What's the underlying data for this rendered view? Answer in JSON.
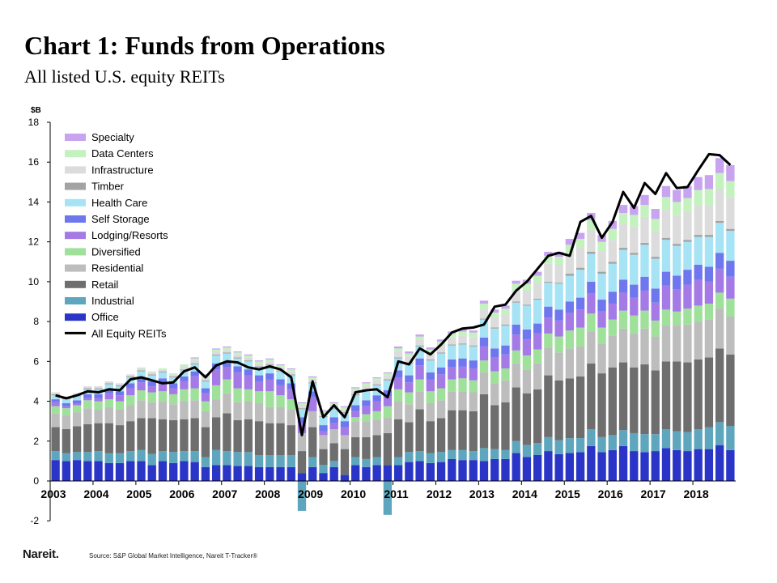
{
  "header": {
    "title": "Chart 1: Funds from Operations",
    "subtitle": "All listed U.S. equity REITs"
  },
  "footer": {
    "logo_text": "Nareit.",
    "source": "Source: S&P Global Market Intelligence, Nareit T-Tracker®"
  },
  "chart_data": {
    "type": "bar",
    "stacked": true,
    "ylabel": "$B",
    "ylim": [
      -2,
      18
    ],
    "yticks": [
      -2,
      0,
      2,
      4,
      6,
      8,
      10,
      12,
      14,
      16,
      18
    ],
    "year_labels": [
      "2003",
      "2004",
      "2005",
      "2006",
      "2007",
      "2008",
      "2009",
      "2010",
      "2011",
      "2012",
      "2013",
      "2014",
      "2015",
      "2016",
      "2017",
      "2018"
    ],
    "quarters_per_year": 4,
    "grid": false,
    "legend_position": "top-left",
    "colors": {
      "Office": "#2a35c8",
      "Industrial": "#5ea6bd",
      "Retail": "#6e6e6e",
      "Residential": "#bdbdbd",
      "Diversified": "#9fe09a",
      "Lodging/Resorts": "#a47ae6",
      "Self Storage": "#6f77ee",
      "Health Care": "#a5e3f5",
      "Timber": "#a3a3a3",
      "Infrastructure": "#dcdcdc",
      "Data Centers": "#c3f2bf",
      "Specialty": "#c8a3ef",
      "All Equity REITs": "#000000"
    },
    "series": [
      {
        "name": "Office",
        "values": [
          1.05,
          1.0,
          1.05,
          1.0,
          1.0,
          0.9,
          0.9,
          1.0,
          1.0,
          0.8,
          1.0,
          0.9,
          1.0,
          0.95,
          0.7,
          0.8,
          0.8,
          0.75,
          0.75,
          0.7,
          0.7,
          0.7,
          0.7,
          0.4,
          0.7,
          0.4,
          0.7,
          0.3,
          0.8,
          0.7,
          0.8,
          0.8,
          0.8,
          0.95,
          1.0,
          0.9,
          0.95,
          1.1,
          1.05,
          1.05,
          1.0,
          1.1,
          1.1,
          1.4,
          1.2,
          1.3,
          1.5,
          1.35,
          1.4,
          1.45,
          1.75,
          1.45,
          1.55,
          1.75,
          1.5,
          1.45,
          1.5,
          1.65,
          1.55,
          1.5,
          1.6,
          1.6,
          1.8,
          1.55
        ]
      },
      {
        "name": "Industrial",
        "values": [
          0.45,
          0.4,
          0.4,
          0.45,
          0.5,
          0.5,
          0.5,
          0.5,
          0.55,
          0.55,
          0.5,
          0.55,
          0.5,
          0.55,
          0.5,
          0.75,
          0.7,
          0.7,
          0.7,
          0.6,
          0.6,
          0.6,
          0.6,
          -1.5,
          0.5,
          0.4,
          0.3,
          -0.05,
          0.4,
          0.4,
          0.4,
          -1.7,
          0.4,
          0.5,
          0.5,
          0.5,
          0.5,
          0.45,
          0.5,
          0.45,
          0.65,
          0.5,
          0.45,
          0.6,
          0.6,
          0.6,
          0.7,
          0.7,
          0.75,
          0.7,
          0.85,
          0.75,
          0.75,
          0.8,
          0.9,
          0.9,
          0.85,
          0.95,
          0.95,
          0.95,
          1.0,
          1.1,
          1.15,
          1.2
        ]
      },
      {
        "name": "Retail",
        "values": [
          1.2,
          1.2,
          1.3,
          1.4,
          1.4,
          1.5,
          1.4,
          1.5,
          1.6,
          1.8,
          1.6,
          1.6,
          1.6,
          1.65,
          1.5,
          1.65,
          1.9,
          1.6,
          1.65,
          1.7,
          1.6,
          1.6,
          1.5,
          1.1,
          1.5,
          0.8,
          0.9,
          1.3,
          1.0,
          1.1,
          1.1,
          1.6,
          1.9,
          1.5,
          2.1,
          1.6,
          1.7,
          2.0,
          2.0,
          2.0,
          2.7,
          2.2,
          2.4,
          2.7,
          2.6,
          2.7,
          3.1,
          3.0,
          3.0,
          3.1,
          3.3,
          3.2,
          3.4,
          3.4,
          3.3,
          3.5,
          3.2,
          3.4,
          3.5,
          3.5,
          3.5,
          3.5,
          3.7,
          3.6
        ]
      },
      {
        "name": "Residential",
        "values": [
          0.7,
          0.7,
          0.7,
          0.8,
          0.7,
          0.8,
          0.8,
          0.8,
          0.9,
          0.8,
          0.9,
          0.8,
          0.9,
          0.9,
          0.8,
          0.9,
          1.0,
          0.9,
          0.9,
          0.9,
          0.8,
          0.8,
          0.8,
          0.9,
          0.8,
          0.7,
          0.7,
          0.7,
          0.8,
          0.8,
          0.8,
          0.8,
          0.9,
          0.9,
          0.9,
          0.9,
          0.9,
          0.95,
          0.95,
          0.95,
          1.1,
          1.1,
          1.1,
          1.2,
          1.2,
          1.3,
          1.4,
          1.4,
          1.5,
          1.5,
          1.6,
          1.5,
          1.6,
          1.7,
          1.7,
          1.8,
          1.7,
          1.8,
          1.8,
          1.9,
          1.9,
          1.9,
          2.0,
          1.9
        ]
      },
      {
        "name": "Diversified",
        "values": [
          0.35,
          0.35,
          0.35,
          0.4,
          0.4,
          0.4,
          0.4,
          0.5,
          0.5,
          0.5,
          0.5,
          0.5,
          0.6,
          0.6,
          0.5,
          0.7,
          0.7,
          0.7,
          0.6,
          0.6,
          0.8,
          0.6,
          0.5,
          0.0,
          0.0,
          0.0,
          0.0,
          0.0,
          0.2,
          0.35,
          0.4,
          0.55,
          0.6,
          0.6,
          0.6,
          0.6,
          0.6,
          0.6,
          0.65,
          0.6,
          0.6,
          0.6,
          0.6,
          0.65,
          0.7,
          0.7,
          0.7,
          0.8,
          0.9,
          0.95,
          0.9,
          0.8,
          0.8,
          0.9,
          0.9,
          0.9,
          0.8,
          0.8,
          0.7,
          0.8,
          0.8,
          0.8,
          0.8,
          0.9
        ]
      },
      {
        "name": "Lodging/Resorts",
        "values": [
          0.2,
          0.1,
          0.1,
          0.1,
          0.15,
          0.3,
          0.3,
          0.35,
          0.4,
          0.3,
          0.4,
          0.3,
          0.4,
          0.6,
          0.4,
          0.8,
          0.6,
          0.8,
          0.7,
          0.5,
          0.6,
          0.5,
          0.5,
          0.5,
          0.7,
          0.2,
          0.3,
          0.4,
          0.3,
          0.4,
          0.5,
          0.5,
          0.6,
          0.5,
          0.7,
          0.6,
          0.7,
          0.6,
          0.6,
          0.6,
          0.7,
          0.7,
          0.7,
          0.8,
          0.8,
          0.8,
          0.8,
          0.8,
          0.9,
          0.9,
          1.0,
          0.8,
          0.8,
          0.9,
          0.9,
          1.0,
          0.9,
          1.2,
          1.1,
          1.2,
          1.3,
          1.1,
          1.2,
          1.1
        ]
      },
      {
        "name": "Self Storage",
        "values": [
          0.15,
          0.15,
          0.15,
          0.2,
          0.2,
          0.2,
          0.2,
          0.25,
          0.25,
          0.25,
          0.25,
          0.25,
          0.25,
          0.25,
          0.25,
          0.3,
          0.3,
          0.3,
          0.3,
          0.3,
          0.3,
          0.3,
          0.3,
          0.3,
          0.3,
          0.3,
          0.3,
          0.3,
          0.3,
          0.3,
          0.3,
          0.3,
          0.35,
          0.35,
          0.35,
          0.35,
          0.35,
          0.4,
          0.4,
          0.4,
          0.45,
          0.45,
          0.45,
          0.5,
          0.5,
          0.5,
          0.55,
          0.55,
          0.55,
          0.6,
          0.6,
          0.6,
          0.6,
          0.65,
          0.65,
          0.7,
          0.7,
          0.7,
          0.7,
          0.75,
          0.75,
          0.75,
          0.8,
          0.8
        ]
      },
      {
        "name": "Health Care",
        "values": [
          0.2,
          0.2,
          0.2,
          0.25,
          0.25,
          0.25,
          0.25,
          0.3,
          0.3,
          0.3,
          0.3,
          0.3,
          0.3,
          0.35,
          0.35,
          0.4,
          0.4,
          0.4,
          0.4,
          0.4,
          0.4,
          0.4,
          0.4,
          0.4,
          0.4,
          0.4,
          0.4,
          0.4,
          0.5,
          0.5,
          0.5,
          0.5,
          0.6,
          0.6,
          0.6,
          0.6,
          0.7,
          0.7,
          0.7,
          0.7,
          0.9,
          1.0,
          1.0,
          1.1,
          1.2,
          1.2,
          1.2,
          1.3,
          1.3,
          1.4,
          1.4,
          1.3,
          1.4,
          1.5,
          1.5,
          1.6,
          1.5,
          1.6,
          1.5,
          1.4,
          1.4,
          1.5,
          1.5,
          1.5
        ]
      },
      {
        "name": "Timber",
        "values": [
          0.05,
          0.05,
          0.05,
          0.05,
          0.05,
          0.05,
          0.05,
          0.05,
          0.05,
          0.05,
          0.05,
          0.05,
          0.05,
          0.05,
          0.05,
          0.05,
          0.05,
          0.05,
          0.05,
          0.05,
          0.05,
          0.05,
          0.05,
          0.05,
          0.05,
          0.05,
          0.05,
          0.05,
          0.05,
          0.05,
          0.05,
          0.05,
          0.05,
          0.05,
          0.05,
          0.05,
          0.05,
          0.05,
          0.05,
          0.05,
          0.05,
          0.05,
          0.05,
          0.05,
          0.05,
          0.05,
          0.05,
          0.05,
          0.1,
          0.1,
          0.1,
          0.1,
          0.1,
          0.1,
          0.1,
          0.1,
          0.1,
          0.1,
          0.1,
          0.1,
          0.1,
          0.1,
          0.1,
          0.1
        ]
      },
      {
        "name": "Infrastructure",
        "values": [
          0.1,
          0.1,
          0.1,
          0.1,
          0.1,
          0.1,
          0.1,
          0.1,
          0.1,
          0.1,
          0.1,
          0.1,
          0.15,
          0.15,
          0.15,
          0.15,
          0.15,
          0.15,
          0.15,
          0.15,
          0.15,
          0.15,
          0.15,
          0.15,
          0.15,
          0.15,
          0.15,
          0.15,
          0.2,
          0.2,
          0.2,
          0.2,
          0.3,
          0.3,
          0.3,
          0.3,
          0.35,
          0.35,
          0.4,
          0.4,
          0.5,
          0.5,
          0.5,
          0.6,
          0.7,
          0.8,
          0.9,
          0.9,
          1.0,
          1.0,
          1.1,
          1.0,
          1.1,
          1.2,
          1.3,
          1.3,
          1.3,
          1.4,
          1.4,
          1.4,
          1.5,
          1.5,
          1.6,
          1.6
        ]
      },
      {
        "name": "Data Centers",
        "values": [
          0.0,
          0.0,
          0.0,
          0.0,
          0.0,
          0.0,
          0.0,
          0.0,
          0.05,
          0.05,
          0.05,
          0.05,
          0.1,
          0.1,
          0.1,
          0.1,
          0.1,
          0.1,
          0.1,
          0.1,
          0.1,
          0.1,
          0.1,
          0.1,
          0.1,
          0.1,
          0.1,
          0.1,
          0.1,
          0.1,
          0.1,
          0.1,
          0.15,
          0.15,
          0.15,
          0.2,
          0.2,
          0.2,
          0.2,
          0.25,
          0.25,
          0.25,
          0.3,
          0.3,
          0.35,
          0.35,
          0.4,
          0.4,
          0.45,
          0.45,
          0.5,
          0.5,
          0.55,
          0.55,
          0.6,
          0.6,
          0.6,
          0.65,
          0.7,
          0.7,
          0.75,
          0.8,
          0.8,
          0.8
        ]
      },
      {
        "name": "Specialty",
        "values": [
          0.0,
          0.0,
          0.0,
          0.0,
          0.0,
          0.0,
          0.0,
          0.0,
          0.0,
          0.0,
          0.0,
          0.0,
          0.0,
          0.05,
          0.05,
          0.05,
          0.05,
          0.05,
          0.05,
          0.05,
          0.05,
          0.05,
          0.05,
          0.05,
          0.05,
          0.05,
          0.05,
          0.05,
          0.05,
          0.05,
          0.05,
          0.05,
          0.1,
          0.1,
          0.1,
          0.1,
          0.1,
          0.1,
          0.1,
          0.1,
          0.15,
          0.15,
          0.15,
          0.15,
          0.2,
          0.2,
          0.2,
          0.25,
          0.3,
          0.3,
          0.35,
          0.35,
          0.4,
          0.4,
          0.45,
          0.5,
          0.5,
          0.55,
          0.6,
          0.6,
          0.65,
          0.7,
          0.75,
          0.8
        ]
      }
    ],
    "total_series": {
      "name": "All Equity REITs",
      "values": [
        4.3,
        4.15,
        4.3,
        4.5,
        4.45,
        4.6,
        4.55,
        5.1,
        5.2,
        5.05,
        4.9,
        4.95,
        5.5,
        5.7,
        5.2,
        5.8,
        6.0,
        5.95,
        5.7,
        5.6,
        5.75,
        5.6,
        5.2,
        2.3,
        5.0,
        3.2,
        3.8,
        3.2,
        4.45,
        4.55,
        4.6,
        4.2,
        6.0,
        5.85,
        6.65,
        6.35,
        6.85,
        7.45,
        7.65,
        7.7,
        7.85,
        8.75,
        8.85,
        9.55,
        10.0,
        10.65,
        11.3,
        11.45,
        11.3,
        13.0,
        13.3,
        12.2,
        13.0,
        14.5,
        13.7,
        14.95,
        14.4,
        15.45,
        14.7,
        14.75,
        15.6,
        16.4,
        16.35,
        15.85
      ]
    }
  }
}
